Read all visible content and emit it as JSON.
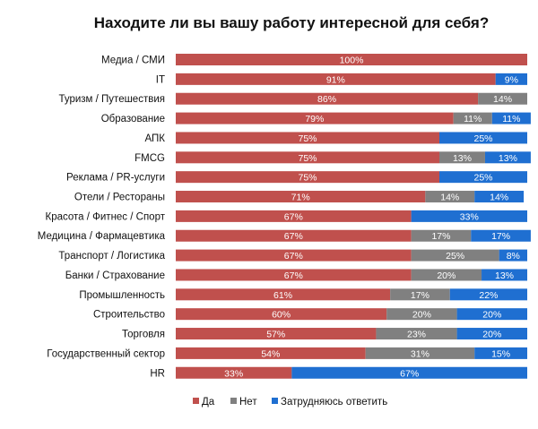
{
  "chart_data": {
    "type": "bar",
    "orientation": "horizontal",
    "stacked": true,
    "title": "Находите ли вы вашу работу интересной для себя?",
    "categories": [
      "Медиа / СМИ",
      "IT",
      "Туризм / Путешествия",
      "Образование",
      "АПК",
      "FMCG",
      "Реклама / PR-услуги",
      "Отели / Рестораны",
      "Красота / Фитнес / Спорт",
      "Медицина / Фармацевтика",
      "Транспорт / Логистика",
      "Банки / Страхование",
      "Промышленность",
      "Строительство",
      "Торговля",
      "Государственный сектор",
      "HR"
    ],
    "series": [
      {
        "name": "Да",
        "color": "#c0504d",
        "values": [
          100,
          91,
          86,
          79,
          75,
          75,
          75,
          71,
          67,
          67,
          67,
          67,
          61,
          60,
          57,
          54,
          33
        ]
      },
      {
        "name": "Нет",
        "color": "#808080",
        "values": [
          0,
          0,
          14,
          11,
          0,
          13,
          0,
          14,
          0,
          17,
          25,
          20,
          17,
          20,
          23,
          31,
          0
        ]
      },
      {
        "name": "Затрудняюсь ответить",
        "color": "#1f6fd1",
        "values": [
          0,
          9,
          0,
          11,
          25,
          13,
          25,
          14,
          33,
          17,
          8,
          13,
          22,
          20,
          20,
          15,
          67
        ]
      }
    ],
    "value_suffix": "%",
    "xlim": [
      0,
      100
    ],
    "legend_position": "bottom"
  }
}
